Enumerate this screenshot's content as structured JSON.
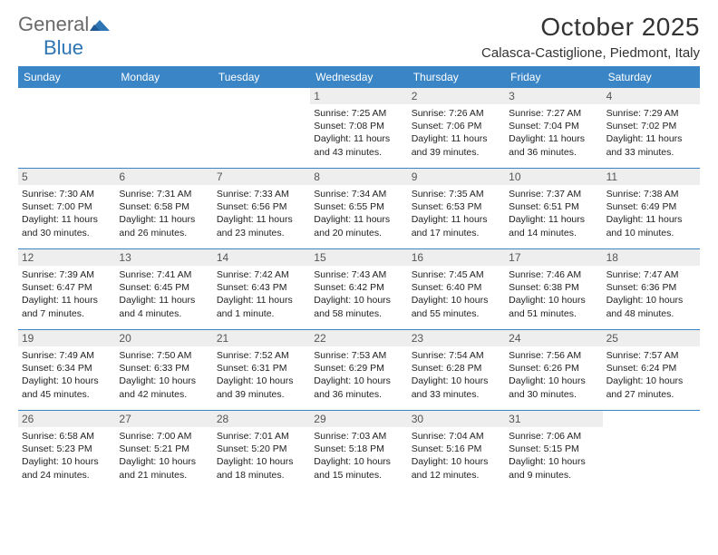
{
  "logo": {
    "general": "General",
    "blue": "Blue"
  },
  "title": "October 2025",
  "location": "Calasca-Castiglione, Piedmont, Italy",
  "colors": {
    "header_blue": "#3a85c6",
    "logo_gray": "#6a6a6a",
    "logo_blue": "#2e75b6",
    "daynum_bg": "#eeeeee",
    "text": "#222222"
  },
  "dayNames": [
    "Sunday",
    "Monday",
    "Tuesday",
    "Wednesday",
    "Thursday",
    "Friday",
    "Saturday"
  ],
  "weeks": [
    [
      null,
      null,
      null,
      {
        "n": "1",
        "sr": "7:25 AM",
        "ss": "7:08 PM",
        "dl": "11 hours and 43 minutes."
      },
      {
        "n": "2",
        "sr": "7:26 AM",
        "ss": "7:06 PM",
        "dl": "11 hours and 39 minutes."
      },
      {
        "n": "3",
        "sr": "7:27 AM",
        "ss": "7:04 PM",
        "dl": "11 hours and 36 minutes."
      },
      {
        "n": "4",
        "sr": "7:29 AM",
        "ss": "7:02 PM",
        "dl": "11 hours and 33 minutes."
      }
    ],
    [
      {
        "n": "5",
        "sr": "7:30 AM",
        "ss": "7:00 PM",
        "dl": "11 hours and 30 minutes."
      },
      {
        "n": "6",
        "sr": "7:31 AM",
        "ss": "6:58 PM",
        "dl": "11 hours and 26 minutes."
      },
      {
        "n": "7",
        "sr": "7:33 AM",
        "ss": "6:56 PM",
        "dl": "11 hours and 23 minutes."
      },
      {
        "n": "8",
        "sr": "7:34 AM",
        "ss": "6:55 PM",
        "dl": "11 hours and 20 minutes."
      },
      {
        "n": "9",
        "sr": "7:35 AM",
        "ss": "6:53 PM",
        "dl": "11 hours and 17 minutes."
      },
      {
        "n": "10",
        "sr": "7:37 AM",
        "ss": "6:51 PM",
        "dl": "11 hours and 14 minutes."
      },
      {
        "n": "11",
        "sr": "7:38 AM",
        "ss": "6:49 PM",
        "dl": "11 hours and 10 minutes."
      }
    ],
    [
      {
        "n": "12",
        "sr": "7:39 AM",
        "ss": "6:47 PM",
        "dl": "11 hours and 7 minutes."
      },
      {
        "n": "13",
        "sr": "7:41 AM",
        "ss": "6:45 PM",
        "dl": "11 hours and 4 minutes."
      },
      {
        "n": "14",
        "sr": "7:42 AM",
        "ss": "6:43 PM",
        "dl": "11 hours and 1 minute."
      },
      {
        "n": "15",
        "sr": "7:43 AM",
        "ss": "6:42 PM",
        "dl": "10 hours and 58 minutes."
      },
      {
        "n": "16",
        "sr": "7:45 AM",
        "ss": "6:40 PM",
        "dl": "10 hours and 55 minutes."
      },
      {
        "n": "17",
        "sr": "7:46 AM",
        "ss": "6:38 PM",
        "dl": "10 hours and 51 minutes."
      },
      {
        "n": "18",
        "sr": "7:47 AM",
        "ss": "6:36 PM",
        "dl": "10 hours and 48 minutes."
      }
    ],
    [
      {
        "n": "19",
        "sr": "7:49 AM",
        "ss": "6:34 PM",
        "dl": "10 hours and 45 minutes."
      },
      {
        "n": "20",
        "sr": "7:50 AM",
        "ss": "6:33 PM",
        "dl": "10 hours and 42 minutes."
      },
      {
        "n": "21",
        "sr": "7:52 AM",
        "ss": "6:31 PM",
        "dl": "10 hours and 39 minutes."
      },
      {
        "n": "22",
        "sr": "7:53 AM",
        "ss": "6:29 PM",
        "dl": "10 hours and 36 minutes."
      },
      {
        "n": "23",
        "sr": "7:54 AM",
        "ss": "6:28 PM",
        "dl": "10 hours and 33 minutes."
      },
      {
        "n": "24",
        "sr": "7:56 AM",
        "ss": "6:26 PM",
        "dl": "10 hours and 30 minutes."
      },
      {
        "n": "25",
        "sr": "7:57 AM",
        "ss": "6:24 PM",
        "dl": "10 hours and 27 minutes."
      }
    ],
    [
      {
        "n": "26",
        "sr": "6:58 AM",
        "ss": "5:23 PM",
        "dl": "10 hours and 24 minutes."
      },
      {
        "n": "27",
        "sr": "7:00 AM",
        "ss": "5:21 PM",
        "dl": "10 hours and 21 minutes."
      },
      {
        "n": "28",
        "sr": "7:01 AM",
        "ss": "5:20 PM",
        "dl": "10 hours and 18 minutes."
      },
      {
        "n": "29",
        "sr": "7:03 AM",
        "ss": "5:18 PM",
        "dl": "10 hours and 15 minutes."
      },
      {
        "n": "30",
        "sr": "7:04 AM",
        "ss": "5:16 PM",
        "dl": "10 hours and 12 minutes."
      },
      {
        "n": "31",
        "sr": "7:06 AM",
        "ss": "5:15 PM",
        "dl": "10 hours and 9 minutes."
      },
      null
    ]
  ],
  "labels": {
    "sunrise": "Sunrise: ",
    "sunset": "Sunset: ",
    "daylight": "Daylight: "
  }
}
